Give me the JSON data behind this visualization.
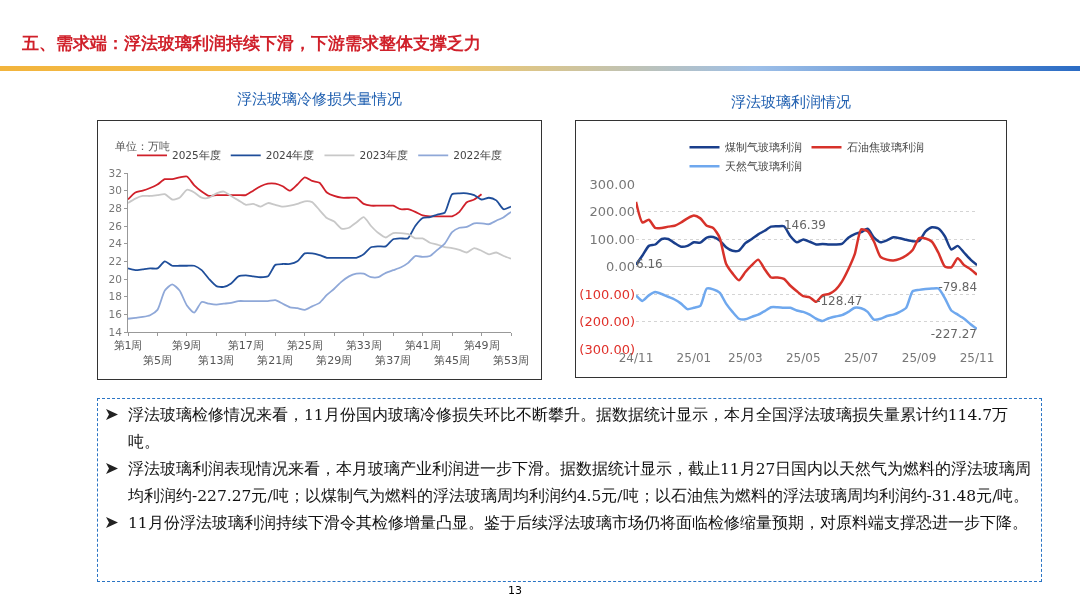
{
  "chart_data": [
    {
      "type": "other",
      "title": "五、需求端：浮法玻璃利润持续下滑，下游需求整体支撑乏力"
    },
    {
      "type": "line",
      "title": "浮法玻璃冷修损失量情况",
      "annotations": [
        "单位：万吨"
      ],
      "legend": "top",
      "categories": [
        "第1周",
        null,
        null,
        null,
        "第5周",
        null,
        null,
        null,
        "第9周",
        null,
        null,
        null,
        "第13周",
        null,
        null,
        null,
        "第17周",
        null,
        null,
        null,
        "第21周",
        null,
        null,
        null,
        "第25周",
        null,
        null,
        null,
        "第29周",
        null,
        null,
        null,
        "第33周",
        null,
        null,
        null,
        "第37周",
        null,
        null,
        null,
        "第41周",
        null,
        null,
        null,
        "第45周",
        null,
        null,
        null,
        "第49周",
        null,
        null,
        null,
        "第53周"
      ],
      "ylim": [
        14,
        32
      ],
      "yticks": [
        14,
        16,
        18,
        20,
        22,
        24,
        26,
        28,
        30,
        32
      ],
      "series": [
        {
          "name": "2025年度",
          "color": "#d0202a",
          "values": [
            29.0,
            29.8,
            30.0,
            30.3,
            30.7,
            31.3,
            31.3,
            31.5,
            31.6,
            30.6,
            29.9,
            29.4,
            29.5,
            29.5,
            29.5,
            29.5,
            29.5,
            30.0,
            30.5,
            30.8,
            30.8,
            30.5,
            30.0,
            30.7,
            31.5,
            31.1,
            30.9,
            29.8,
            29.4,
            29.2,
            29.2,
            29.2,
            28.5,
            28.3,
            28.3,
            28.3,
            28.3,
            27.9,
            27.9,
            27.6,
            27.2,
            27.1,
            27.1,
            27.1,
            27.1,
            27.6,
            28.7,
            29.0,
            29.6,
            null,
            null,
            null,
            null
          ]
        },
        {
          "name": "2024年度",
          "color": "#1f4e9a",
          "values": [
            21.2,
            21.0,
            21.1,
            21.2,
            21.2,
            22.0,
            21.5,
            21.5,
            21.5,
            21.5,
            21.0,
            20.0,
            19.2,
            19.1,
            19.5,
            20.3,
            20.4,
            20.3,
            20.2,
            20.3,
            21.6,
            21.7,
            21.7,
            22.0,
            22.9,
            22.9,
            22.7,
            22.4,
            22.4,
            22.4,
            22.4,
            22.4,
            22.8,
            23.6,
            23.7,
            23.7,
            24.5,
            24.6,
            24.6,
            26.0,
            26.9,
            27.0,
            27.3,
            27.5,
            29.6,
            29.7,
            29.7,
            29.5,
            29.0,
            29.2,
            28.9,
            27.9,
            28.2
          ]
        },
        {
          "name": "2023年度",
          "color": "#c8c8c8",
          "values": [
            28.6,
            29.1,
            29.4,
            29.4,
            29.5,
            29.6,
            29.0,
            29.2,
            30.1,
            29.8,
            29.2,
            29.2,
            29.7,
            29.9,
            29.4,
            28.9,
            28.4,
            28.5,
            28.2,
            28.6,
            28.4,
            28.2,
            28.3,
            28.5,
            28.8,
            28.7,
            27.8,
            26.9,
            26.5,
            25.7,
            25.8,
            26.4,
            27.0,
            26.0,
            25.2,
            24.7,
            25.2,
            25.2,
            25.1,
            24.6,
            24.6,
            24.1,
            23.9,
            23.6,
            23.5,
            23.3,
            23.0,
            23.5,
            23.2,
            22.8,
            23.0,
            22.6,
            22.3
          ]
        },
        {
          "name": "2022年度",
          "color": "#8fa8d8",
          "values": [
            15.5,
            15.6,
            15.7,
            15.9,
            16.5,
            18.7,
            19.4,
            18.7,
            17.0,
            16.2,
            17.4,
            17.2,
            17.1,
            17.2,
            17.3,
            17.5,
            17.5,
            17.5,
            17.5,
            17.5,
            17.6,
            17.2,
            16.8,
            16.7,
            16.5,
            16.9,
            17.3,
            18.2,
            18.9,
            19.7,
            20.3,
            20.6,
            20.6,
            20.2,
            20.2,
            20.7,
            21.0,
            21.3,
            21.8,
            22.6,
            22.5,
            22.6,
            23.3,
            24.0,
            25.3,
            25.8,
            25.9,
            26.3,
            26.3,
            26.2,
            26.6,
            27.0,
            27.6
          ]
        }
      ]
    },
    {
      "type": "line",
      "title": "浮法玻璃利润情况",
      "legend": "top",
      "grid": "y",
      "categories": [
        "24/11",
        null,
        null,
        null,
        null,
        null,
        null,
        null,
        null,
        "25/01",
        null,
        null,
        null,
        null,
        null,
        null,
        null,
        "25/03",
        null,
        null,
        null,
        null,
        null,
        null,
        null,
        null,
        "25/05",
        null,
        null,
        null,
        null,
        null,
        null,
        null,
        null,
        "25/07",
        null,
        null,
        null,
        null,
        null,
        null,
        null,
        null,
        "25/09",
        null,
        null,
        null,
        null,
        null,
        null,
        null,
        null,
        "25/11"
      ],
      "ylim": [
        -300,
        300
      ],
      "yticks": [
        {
          "value": 300,
          "label": "300.00"
        },
        {
          "value": 200,
          "label": "200.00"
        },
        {
          "value": 100,
          "label": "100.00"
        },
        {
          "value": 0,
          "label": "0.00"
        },
        {
          "value": -100,
          "label": "(100.00)"
        },
        {
          "value": -200,
          "label": "(200.00)"
        },
        {
          "value": -300,
          "label": "(300.00)"
        }
      ],
      "series": [
        {
          "name": "煤制气玻璃利润",
          "color": "#1a3f8c",
          "values": [
            6.16,
            40,
            75,
            80,
            100,
            100,
            85,
            72,
            75,
            88,
            87,
            105,
            107,
            95,
            70,
            57,
            58,
            85,
            100,
            117,
            130,
            145,
            146,
            146.39,
            110,
            88,
            98,
            90,
            80,
            82,
            80,
            80,
            82,
            105,
            118,
            125,
            137,
            105,
            88,
            95,
            106,
            103,
            97,
            92,
            93,
            128,
            143,
            138,
            110,
            62,
            75,
            50,
            25,
            5
          ],
          "value_labels": [
            "6.16",
            null,
            null,
            null,
            null,
            null,
            null,
            null,
            null,
            null,
            null,
            null,
            null,
            null,
            null,
            null,
            null,
            null,
            null,
            null,
            null,
            null,
            null,
            "146.39",
            null,
            null,
            null,
            null,
            null,
            null,
            null,
            null,
            null,
            null,
            null,
            null,
            null,
            null,
            null,
            null,
            null,
            null,
            null,
            null,
            null,
            null,
            null,
            null,
            null,
            null,
            null,
            null,
            null,
            null
          ]
        },
        {
          "name": "石油焦玻璃利润",
          "color": "#d7322a",
          "values": [
            235,
            160,
            170,
            140,
            140,
            145,
            148,
            160,
            175,
            185,
            175,
            148,
            140,
            105,
            10,
            -25,
            -50,
            -20,
            5,
            25,
            -10,
            -40,
            -40,
            -45,
            -70,
            -90,
            -108,
            -112,
            -128.47,
            -105,
            -100,
            -85,
            -55,
            -10,
            45,
            135,
            128,
            90,
            35,
            25,
            22,
            28,
            40,
            60,
            103,
            102,
            90,
            50,
            0,
            -3,
            30,
            5,
            -10,
            -30
          ],
          "value_labels": [
            null,
            null,
            null,
            null,
            null,
            null,
            null,
            null,
            null,
            null,
            null,
            null,
            null,
            null,
            null,
            null,
            null,
            null,
            null,
            null,
            null,
            null,
            null,
            null,
            null,
            null,
            null,
            null,
            "-128.47",
            null,
            null,
            null,
            null,
            null,
            null,
            null,
            null,
            null,
            null,
            null,
            null,
            null,
            null,
            null,
            null,
            null,
            null,
            null,
            null,
            null,
            null,
            null,
            null,
            null
          ]
        },
        {
          "name": "天然气玻璃利润",
          "color": "#6fa8ee",
          "values": [
            -105,
            -125,
            -105,
            -93,
            -100,
            -110,
            -120,
            -135,
            -155,
            -150,
            -143,
            -80,
            -83,
            -95,
            -135,
            -165,
            -190,
            -192,
            -183,
            -175,
            -162,
            -148,
            -148,
            -150,
            -150,
            -160,
            -165,
            -175,
            -190,
            -198,
            -188,
            -182,
            -177,
            -165,
            -150,
            -152,
            -165,
            -193,
            -190,
            -180,
            -175,
            -165,
            -150,
            -90,
            -85,
            -82,
            -80,
            -79.84,
            -115,
            -160,
            -175,
            -190,
            -210,
            -227.27
          ],
          "value_labels": [
            null,
            null,
            null,
            null,
            null,
            null,
            null,
            null,
            null,
            null,
            null,
            null,
            null,
            null,
            null,
            null,
            null,
            null,
            null,
            null,
            null,
            null,
            null,
            null,
            null,
            null,
            null,
            null,
            null,
            null,
            null,
            null,
            null,
            null,
            null,
            null,
            null,
            null,
            null,
            null,
            null,
            null,
            null,
            null,
            null,
            null,
            null,
            "-79.84",
            null,
            null,
            null,
            null,
            null,
            "-227.27"
          ]
        }
      ]
    },
    {
      "type": "other",
      "annotations": [
        "浮法玻璃检修情况来看，11月份国内玻璃冷修损失环比不断攀升。据数据统计显示，本月全国浮法玻璃损失量累计约114.7万吨。",
        "浮法玻璃利润表现情况来看，本月玻璃产业利润进一步下滑。据数据统计显示，截止11月27日国内以天然气为燃料的浮法玻璃周均利润约-227.27元/吨；以煤制气为燃料的浮法玻璃周均利润约4.5元/吨；以石油焦为燃料的浮法玻璃周均利润约-31.48元/吨。",
        "11月份浮法玻璃利润持续下滑令其检修增量凸显。鉴于后续浮法玻璃市场仍将面临检修缩量预期，对原料端支撑恐进一步下降。",
        "13"
      ]
    }
  ]
}
